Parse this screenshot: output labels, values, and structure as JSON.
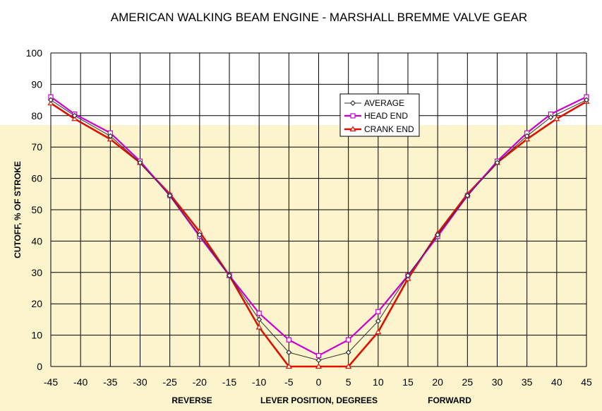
{
  "chart_data": {
    "type": "line",
    "title": "AMERICAN WALKING BEAM ENGINE - MARSHALL BREMME VALVE GEAR",
    "xlabel": "LEVER POSITION, DEGREES",
    "xlabel_left": "REVERSE",
    "xlabel_right": "FORWARD",
    "ylabel": "CUTOFF, % OF STROKE",
    "xlim": [
      -45,
      45
    ],
    "ylim": [
      0,
      100
    ],
    "x_ticks": [
      "-45",
      "-40",
      "-35",
      "-30",
      "-25",
      "-20",
      "-15",
      "-10",
      "-5",
      "0",
      "5",
      "10",
      "15",
      "20",
      "25",
      "30",
      "35",
      "40",
      "45"
    ],
    "y_ticks": [
      "0",
      "10",
      "20",
      "30",
      "40",
      "50",
      "60",
      "70",
      "80",
      "90",
      "100"
    ],
    "grid": true,
    "legend_position": "top-right",
    "series": [
      {
        "name": "AVERAGE",
        "color": "#333333",
        "marker": "diamond",
        "x": [
          -45,
          -41,
          -35,
          -30,
          -25,
          -20,
          -15,
          -10,
          -5,
          0,
          5,
          10,
          15,
          20,
          25,
          30,
          35,
          39,
          45
        ],
        "y": [
          85,
          80,
          73.5,
          65,
          54.5,
          42,
          29,
          15,
          4.5,
          2,
          4.5,
          14.5,
          29,
          42,
          54.5,
          65,
          73.5,
          79.5,
          85
        ]
      },
      {
        "name": "HEAD END",
        "color": "#cc00cc",
        "marker": "square",
        "x": [
          -45,
          -41,
          -35,
          -30,
          -25,
          -20,
          -15,
          -10,
          -5,
          0,
          5,
          10,
          15,
          20,
          25,
          30,
          35,
          39,
          45
        ],
        "y": [
          86,
          80.5,
          74.5,
          65.5,
          54.5,
          41.5,
          29,
          17,
          8.5,
          3.5,
          8.5,
          17.5,
          29,
          41.5,
          54.5,
          65.5,
          74.5,
          80.5,
          86
        ]
      },
      {
        "name": "CRANK END",
        "color": "#dd1100",
        "marker": "triangle",
        "x": [
          -45,
          -41,
          -35,
          -30,
          -25,
          -20,
          -15,
          -10,
          -5,
          0,
          5,
          10,
          15,
          20,
          25,
          30,
          35,
          40,
          45
        ],
        "y": [
          84,
          79,
          72.5,
          65,
          55,
          43,
          29,
          12.5,
          0,
          0,
          0,
          11,
          28,
          42.5,
          55,
          65,
          72.5,
          79,
          84.5
        ]
      }
    ]
  },
  "colors": {
    "plot_background": "#ffffff",
    "lower_band_background": "#fbf4cc",
    "grid": "#000000"
  }
}
